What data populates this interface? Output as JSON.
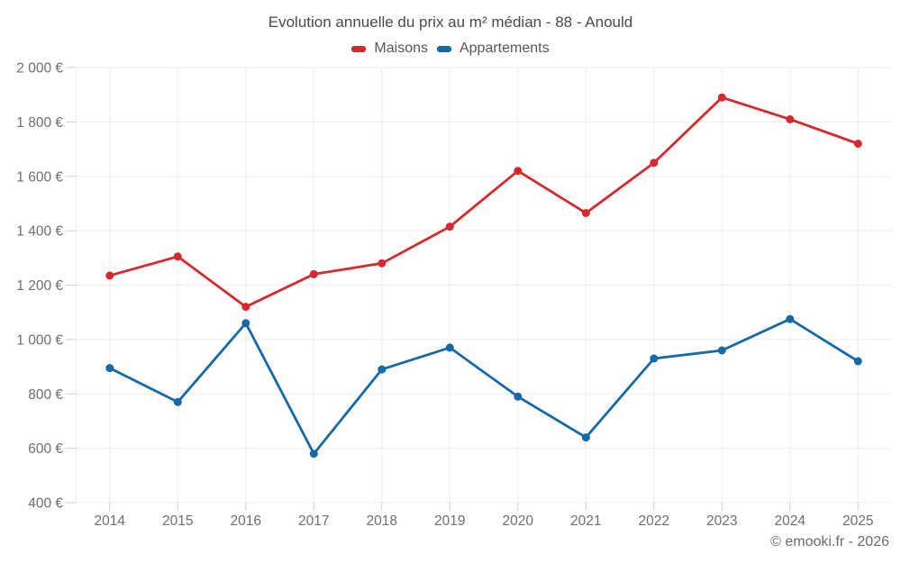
{
  "chart_data": {
    "type": "line",
    "title": "Evolution annuelle du prix au m² médian - 88 - Anould",
    "categories": [
      "2014",
      "2015",
      "2016",
      "2017",
      "2018",
      "2019",
      "2020",
      "2021",
      "2022",
      "2023",
      "2024",
      "2025"
    ],
    "series": [
      {
        "name": "Maisons",
        "color": "#d7282e",
        "values": [
          1235,
          1305,
          1120,
          1240,
          1280,
          1415,
          1620,
          1465,
          1650,
          1890,
          1810,
          1720
        ]
      },
      {
        "name": "Appartements",
        "color": "#1769a5",
        "values": [
          895,
          770,
          1060,
          580,
          890,
          970,
          790,
          640,
          930,
          960,
          1075,
          920
        ]
      }
    ],
    "ylim": [
      400,
      2000
    ],
    "ytick_step": 200,
    "ytick_labels": [
      "400 €",
      "600 €",
      "800 €",
      "1 000 €",
      "1 200 €",
      "1 400 €",
      "1 600 €",
      "1 800 €",
      "2 000 €"
    ],
    "xlabel": "",
    "ylabel": "",
    "grid": true,
    "legend_position": "top",
    "footer": "© emooki.fr - 2026"
  }
}
